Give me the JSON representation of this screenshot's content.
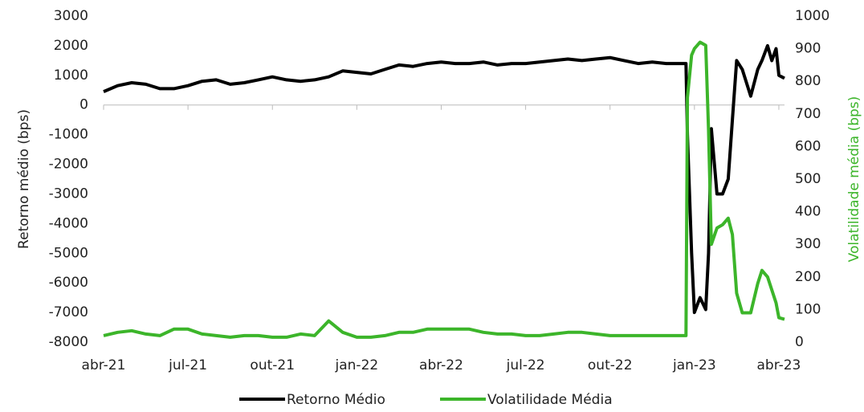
{
  "chart_data": {
    "type": "line",
    "y_label": "Retorno médio (bps)",
    "y2_label": "Volatilidade média (bps)",
    "x": [
      0,
      0.5,
      1,
      1.5,
      2,
      2.5,
      3,
      3.5,
      4,
      4.5,
      5,
      5.5,
      6,
      6.5,
      7,
      7.5,
      8,
      8.5,
      9,
      9.5,
      10,
      10.5,
      11,
      11.5,
      12,
      12.5,
      13,
      13.5,
      14,
      14.5,
      15,
      15.5,
      16,
      16.5,
      17,
      17.5,
      18,
      18.5,
      19,
      19.5,
      20,
      20.5,
      20.7,
      20.75,
      20.9,
      21,
      21.2,
      21.4,
      21.5,
      21.6,
      21.8,
      22,
      22.2,
      22.35,
      22.5,
      22.7,
      23,
      23.25,
      23.4,
      23.6,
      23.75,
      23.9,
      24,
      24.2
    ],
    "series": [
      {
        "name": "Retorno Médio",
        "color": "#000000",
        "axis": "y",
        "values": [
          450,
          650,
          750,
          700,
          550,
          550,
          650,
          800,
          850,
          700,
          750,
          850,
          950,
          850,
          800,
          850,
          950,
          1150,
          1100,
          1050,
          1200,
          1350,
          1300,
          1400,
          1450,
          1400,
          1400,
          1450,
          1350,
          1400,
          1400,
          1450,
          1500,
          1550,
          1500,
          1550,
          1600,
          1500,
          1400,
          1450,
          1400,
          1400,
          1400,
          -1000,
          -5000,
          -7000,
          -6500,
          -6900,
          -5000,
          -800,
          -3000,
          -3000,
          -2500,
          -500,
          1500,
          1200,
          300,
          1200,
          1500,
          2000,
          1500,
          1900,
          1000,
          900
        ]
      },
      {
        "name": "Volatilidade Média",
        "color": "#3cb52a",
        "axis": "y2",
        "values": [
          20,
          30,
          35,
          25,
          20,
          40,
          40,
          25,
          20,
          15,
          20,
          20,
          15,
          15,
          25,
          20,
          65,
          30,
          15,
          15,
          20,
          30,
          30,
          40,
          40,
          40,
          40,
          30,
          25,
          25,
          20,
          20,
          25,
          30,
          30,
          25,
          20,
          20,
          20,
          20,
          20,
          20,
          20,
          750,
          880,
          900,
          920,
          910,
          650,
          300,
          350,
          360,
          380,
          330,
          150,
          90,
          90,
          180,
          220,
          200,
          160,
          120,
          75,
          70
        ]
      }
    ],
    "xlim": [
      0,
      24.2
    ],
    "xticks": [
      {
        "value": 0,
        "label": "abr-21"
      },
      {
        "value": 3,
        "label": "jul-21"
      },
      {
        "value": 6,
        "label": "out-21"
      },
      {
        "value": 9,
        "label": "jan-22"
      },
      {
        "value": 12,
        "label": "abr-22"
      },
      {
        "value": 15,
        "label": "jul-22"
      },
      {
        "value": 18,
        "label": "out-22"
      },
      {
        "value": 21,
        "label": "jan-23"
      },
      {
        "value": 24,
        "label": "abr-23"
      }
    ],
    "ylim": [
      -8000,
      3000
    ],
    "yticks": [
      3000,
      2000,
      1000,
      0,
      -1000,
      -2000,
      -3000,
      -4000,
      -5000,
      -6000,
      -7000,
      -8000
    ],
    "y2lim": [
      0,
      1000
    ],
    "y2ticks": [
      1000,
      900,
      800,
      700,
      600,
      500,
      400,
      300,
      200,
      100,
      0
    ],
    "legend": "bottom"
  }
}
